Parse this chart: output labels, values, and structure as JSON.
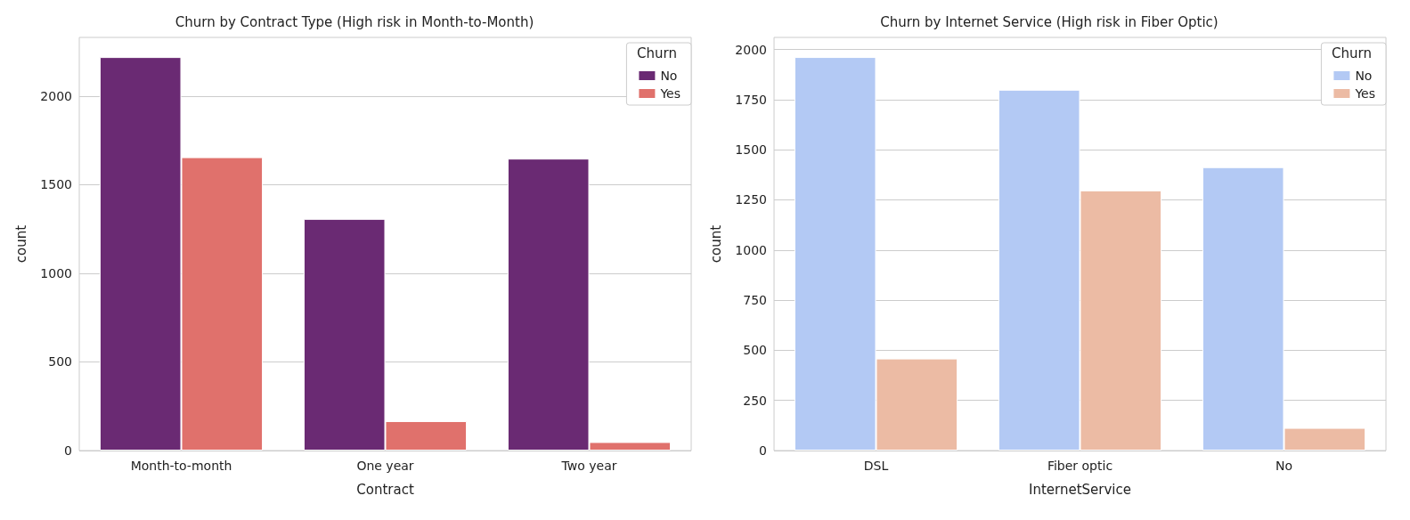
{
  "chart_data": [
    {
      "type": "bar",
      "title": "Churn by Contract Type (High risk in Month-to-Month)",
      "xlabel": "Contract",
      "ylabel": "count",
      "legend_title": "Churn",
      "legend": "top right",
      "grid": "y",
      "categories": [
        "Month-to-month",
        "One year",
        "Two year"
      ],
      "ylim": [
        0,
        2331
      ],
      "yticks": [
        0,
        500,
        1000,
        1500,
        2000
      ],
      "series": [
        {
          "name": "No",
          "color": "#6a2a73",
          "values": [
            2220,
            1307,
            1647
          ]
        },
        {
          "name": "Yes",
          "color": "#e0716c",
          "values": [
            1655,
            166,
            48
          ]
        }
      ]
    },
    {
      "type": "bar",
      "title": "Churn by Internet Service (High risk in Fiber Optic)",
      "xlabel": "InternetService",
      "ylabel": "count",
      "legend_title": "Churn",
      "legend": "top right",
      "grid": "y",
      "categories": [
        "DSL",
        "Fiber optic",
        "No"
      ],
      "ylim": [
        0,
        2060
      ],
      "yticks": [
        0,
        250,
        500,
        750,
        1000,
        1250,
        1500,
        1750,
        2000
      ],
      "series": [
        {
          "name": "No",
          "color": "#b3c9f4",
          "values": [
            1962,
            1799,
            1413
          ]
        },
        {
          "name": "Yes",
          "color": "#ecbba4",
          "values": [
            459,
            1297,
            113
          ]
        }
      ]
    }
  ]
}
